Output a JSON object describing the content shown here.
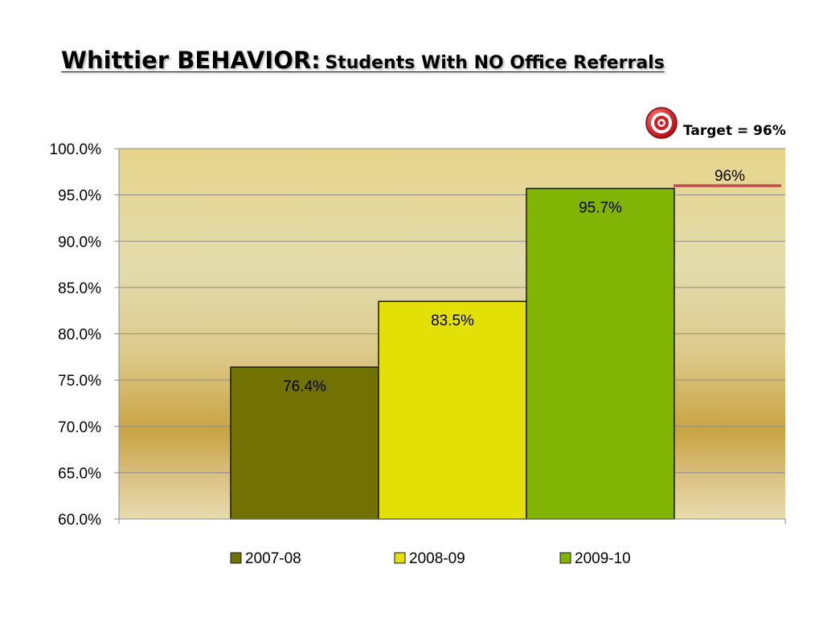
{
  "title": {
    "main": "Whittier BEHAVIOR:",
    "sub": "Students With NO Office Referrals"
  },
  "target_callout": {
    "label": "Target = 96%",
    "icon": "target-icon"
  },
  "colors": {
    "series": [
      "#727104",
      "#e3e008",
      "#82b406"
    ],
    "target_line": "#c0504d",
    "plot_background_top": "#e5d58e",
    "plot_background_band": "#c9a845"
  },
  "chart_data": {
    "type": "bar",
    "categories": [
      "2007-08",
      "2008-09",
      "2009-10"
    ],
    "series": [
      {
        "name": "2007-08",
        "value": 76.4,
        "label": "76.4%"
      },
      {
        "name": "2008-09",
        "value": 83.5,
        "label": "83.5%"
      },
      {
        "name": "2009-10",
        "value": 95.7,
        "label": "95.7%"
      }
    ],
    "ylim": [
      60,
      100
    ],
    "yticks": [
      "60.0%",
      "65.0%",
      "70.0%",
      "75.0%",
      "80.0%",
      "85.0%",
      "90.0%",
      "95.0%",
      "100.0%"
    ],
    "gridlines": true,
    "legend_position": "bottom",
    "target": {
      "value": 96,
      "label": "96%"
    }
  }
}
